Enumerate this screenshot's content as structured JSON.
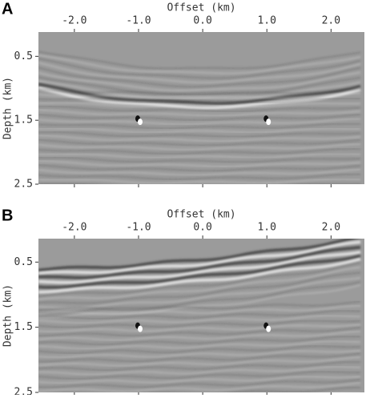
{
  "chart_data": [
    {
      "type": "image",
      "panel": "A",
      "xlabel": "Offset (km)",
      "ylabel": "Depth (km)",
      "xlim": [
        -2.56,
        2.52
      ],
      "ylim": [
        0.12,
        2.5
      ],
      "xticks": [
        {
          "value": -2,
          "label": "-2.0"
        },
        {
          "value": -1,
          "label": "-1.0"
        },
        {
          "value": 0,
          "label": "0.0"
        },
        {
          "value": 1,
          "label": "1.0"
        },
        {
          "value": 2,
          "label": "2.0"
        }
      ],
      "yticks": [
        0.5,
        1.5,
        2.5
      ]
    },
    {
      "type": "image",
      "panel": "B",
      "xlabel": "Offset (km)",
      "ylabel": "Depth (km)",
      "xlim": [
        -2.56,
        2.52
      ],
      "ylim": [
        0.14,
        2.5
      ],
      "xticks": [
        {
          "value": -2,
          "label": "-2.0"
        },
        {
          "value": -1,
          "label": "-1.0"
        },
        {
          "value": 0,
          "label": "0.0"
        },
        {
          "value": 1,
          "label": "1.0"
        },
        {
          "value": 2,
          "label": "2.0"
        }
      ],
      "yticks": [
        0.5,
        1.5,
        2.5
      ]
    }
  ]
}
